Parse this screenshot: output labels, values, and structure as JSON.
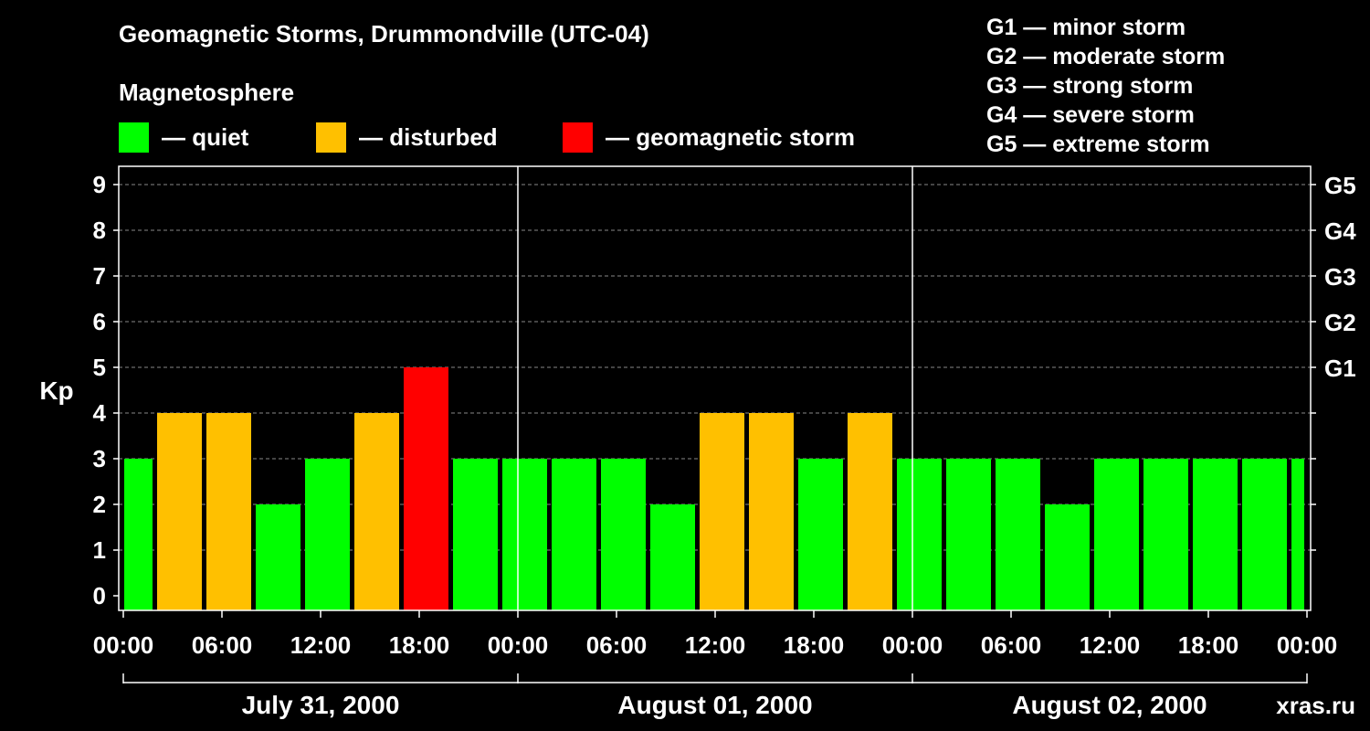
{
  "title": "Geomagnetic Storms, Drummondville (UTC-04)",
  "subtitle": "Magnetosphere",
  "legend": [
    {
      "label": "— quiet",
      "color": "#00ff00"
    },
    {
      "label": "— disturbed",
      "color": "#ffc000"
    },
    {
      "label": "— geomagnetic storm",
      "color": "#ff0000"
    }
  ],
  "g_legend": [
    "G1 — minor storm",
    "G2 — moderate storm",
    "G3 — strong storm",
    "G4 — severe storm",
    "G5 — extreme storm"
  ],
  "watermark": "xras.ru",
  "chart_data": {
    "type": "bar",
    "title": "Geomagnetic Storms, Drummondville (UTC-04)",
    "ylabel": "Kp",
    "ylim": [
      0,
      9
    ],
    "yticks": [
      0,
      1,
      2,
      3,
      4,
      5,
      6,
      7,
      8,
      9
    ],
    "right_axis": [
      {
        "kp": 5,
        "label": "G1"
      },
      {
        "kp": 6,
        "label": "G2"
      },
      {
        "kp": 7,
        "label": "G3"
      },
      {
        "kp": 8,
        "label": "G4"
      },
      {
        "kp": 9,
        "label": "G5"
      }
    ],
    "x_hours_range": [
      0,
      72
    ],
    "xtick_labels": [
      "00:00",
      "06:00",
      "12:00",
      "18:00",
      "00:00",
      "06:00",
      "12:00",
      "18:00",
      "00:00",
      "06:00",
      "12:00",
      "18:00",
      "00:00"
    ],
    "days": [
      "July 31, 2000",
      "August 01, 2000",
      "August 02, 2000"
    ],
    "bar_interval_hours": 3,
    "start_hour": -1,
    "values": [
      3,
      4,
      4,
      2,
      3,
      4,
      5,
      3,
      3,
      3,
      3,
      2,
      4,
      4,
      3,
      4,
      3,
      3,
      3,
      2,
      3,
      3,
      3,
      3,
      3
    ],
    "colors": {
      "quiet": "#00ff00",
      "disturbed": "#ffc000",
      "storm": "#ff0000"
    },
    "grid": true
  }
}
